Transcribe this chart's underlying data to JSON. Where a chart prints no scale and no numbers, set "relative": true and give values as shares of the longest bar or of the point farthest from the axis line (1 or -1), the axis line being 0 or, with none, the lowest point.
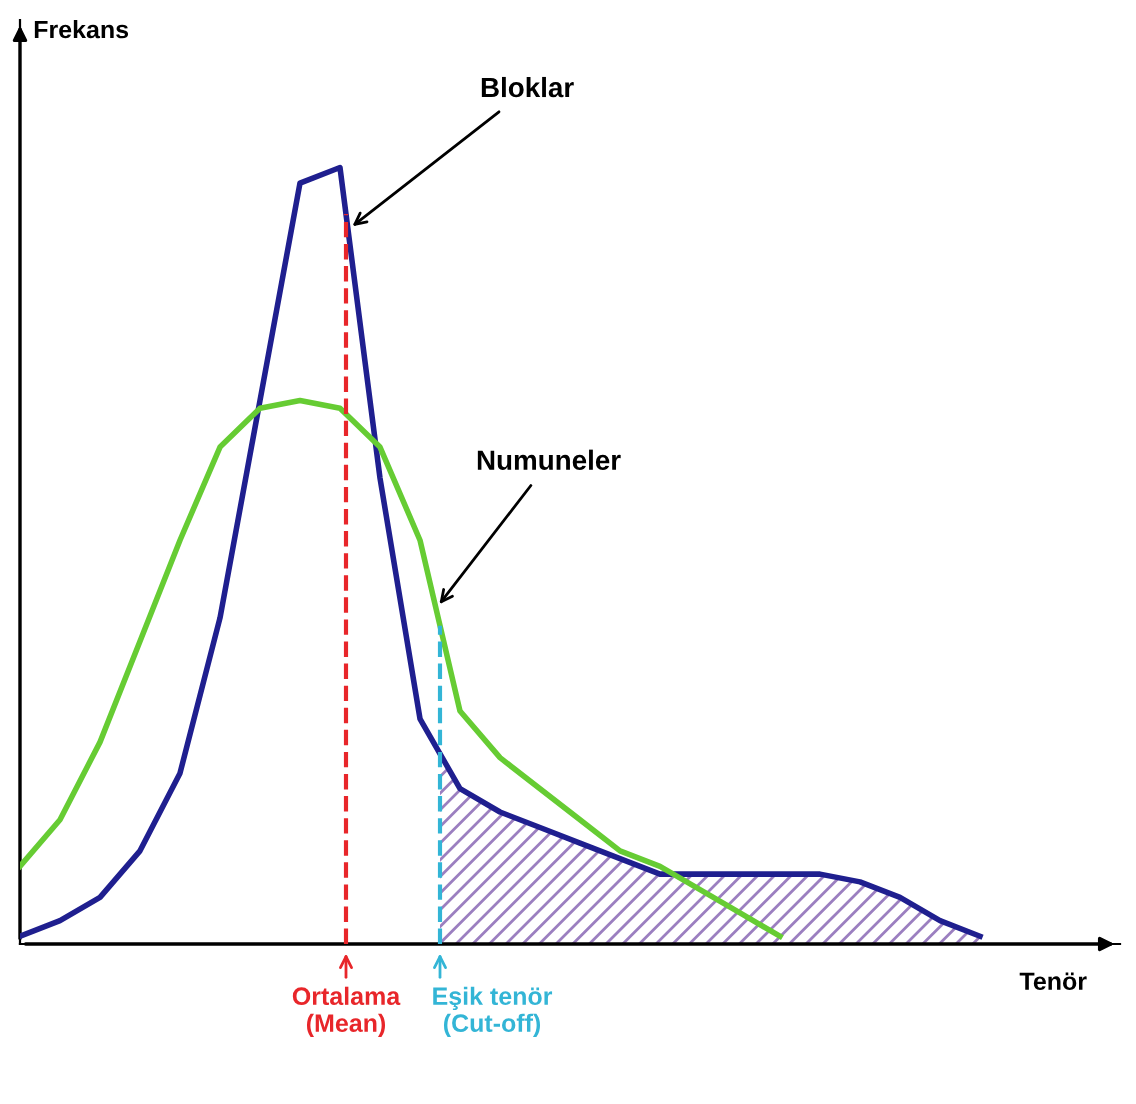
{
  "chart_data": {
    "type": "line",
    "relative": true,
    "xlabel": "Tenör",
    "categories": [
      null,
      null,
      null,
      null,
      null,
      null,
      null,
      null,
      null,
      null,
      null,
      null,
      null,
      null,
      null,
      null,
      null,
      null,
      null,
      null,
      null,
      null,
      null,
      null,
      null,
      null,
      null,
      null
    ],
    "series": [
      {
        "name": "Bloklar",
        "color": "#1f1f8f",
        "values": [
          0.01,
          0.03,
          0.06,
          0.12,
          0.22,
          0.42,
          0.7,
          0.98,
          1.0,
          0.6,
          0.29,
          0.2,
          0.17,
          0.15,
          0.13,
          0.11,
          0.09,
          0.09,
          0.09,
          0.09,
          0.09,
          0.08,
          0.06,
          0.03,
          0.01,
          null,
          null,
          null
        ]
      },
      {
        "name": "Numuneler",
        "color": "#66cc33",
        "values": [
          0.1,
          0.16,
          0.26,
          0.39,
          0.52,
          0.64,
          0.69,
          0.7,
          0.69,
          0.64,
          0.52,
          0.3,
          0.24,
          0.2,
          0.16,
          0.12,
          0.1,
          0.07,
          0.04,
          0.01,
          null,
          null,
          null,
          null,
          null,
          null,
          null,
          null
        ]
      }
    ],
    "annotations": [
      "Frekans",
      "Ortalama\n(Mean)",
      "Eşik tenör\n(Cut-off)"
    ],
    "grid": false,
    "legend": false,
    "line_style": "solid",
    "marker": "none"
  }
}
